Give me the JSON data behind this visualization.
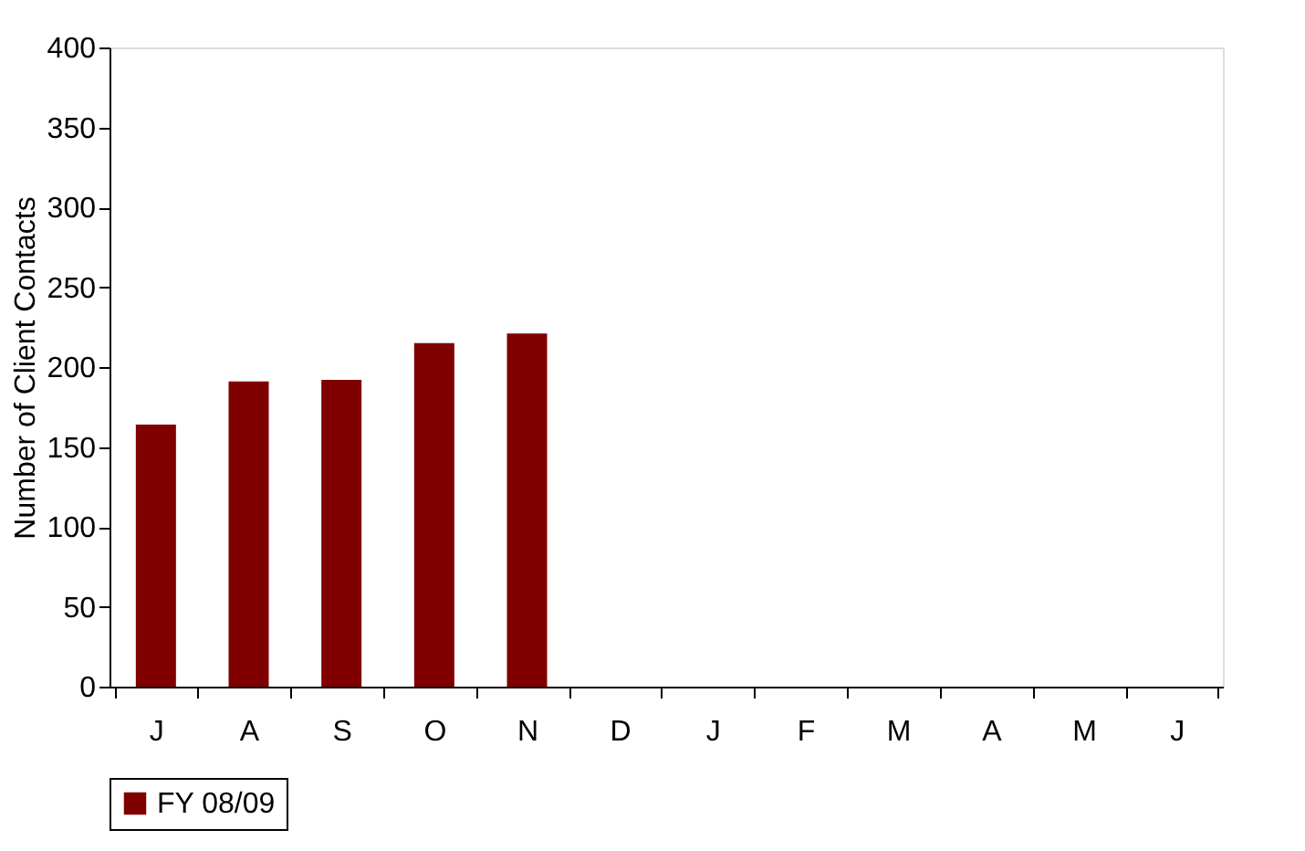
{
  "chart_data": {
    "type": "bar",
    "ylabel": "Number of Client Contacts",
    "categories": [
      "J",
      "A",
      "S",
      "O",
      "N",
      "D",
      "J",
      "F",
      "M",
      "A",
      "M",
      "J"
    ],
    "series": [
      {
        "name": "FY 08/09",
        "color": "#800000",
        "values": [
          164,
          191,
          192,
          215,
          221,
          null,
          null,
          null,
          null,
          null,
          null,
          null
        ]
      }
    ],
    "ylim": [
      0,
      400
    ],
    "yticks": [
      0,
      50,
      100,
      150,
      200,
      250,
      300,
      350,
      400
    ],
    "grid": false,
    "legend": "bottom"
  }
}
